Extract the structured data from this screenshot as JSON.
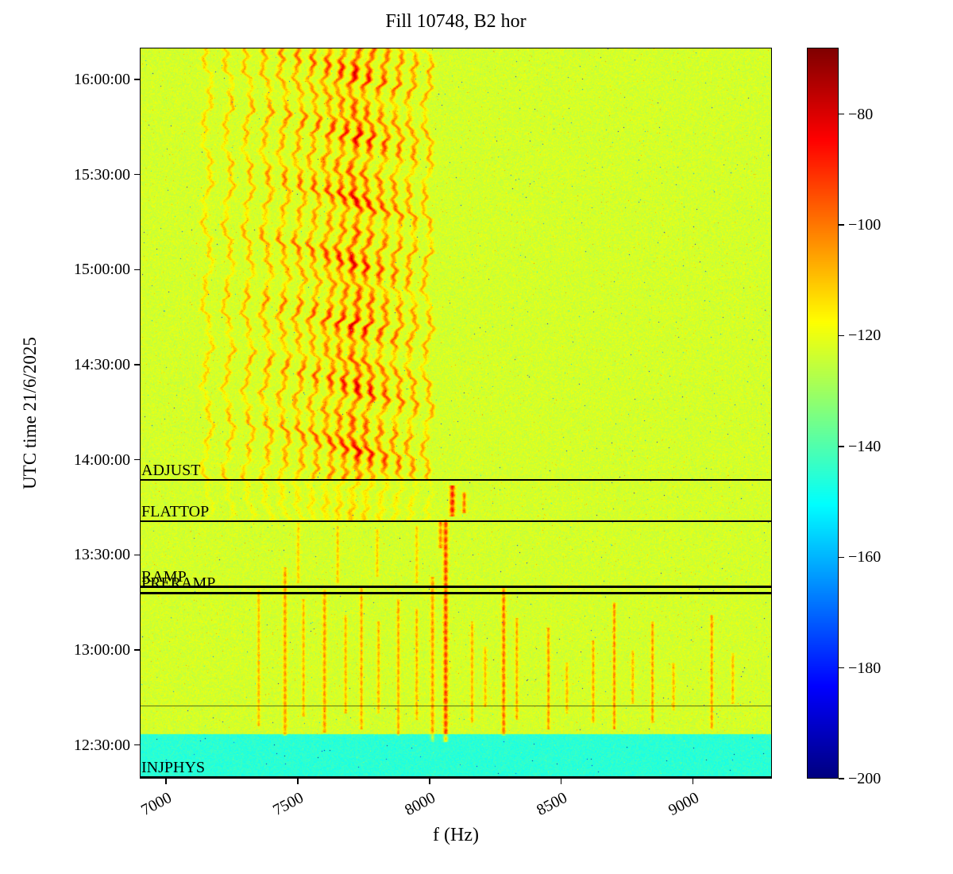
{
  "chart_data": {
    "type": "heatmap",
    "subtype": "spectrogram",
    "title": "Fill 10748, B2 hor",
    "xlabel": "f (Hz)",
    "ylabel": "UTC time 21/6/2025",
    "date": "21/6/2025",
    "x_range": [
      6900,
      9300
    ],
    "x_ticks": [
      7000,
      7500,
      8000,
      8500,
      9000
    ],
    "y_ticks": [
      "16:00:00",
      "15:30:00",
      "15:00:00",
      "14:30:00",
      "14:00:00",
      "13:30:00",
      "13:00:00",
      "12:30:00"
    ],
    "y_range_minutes": [
      739.4,
      970
    ],
    "colorbar": {
      "colormap": "jet",
      "vmin": -200,
      "vmax": -68,
      "ticks": [
        -80,
        -100,
        -120,
        -140,
        -160,
        -180,
        -200
      ],
      "tick_labels": [
        "−80",
        "−100",
        "−120",
        "−140",
        "−160",
        "−180",
        "−200"
      ]
    },
    "annotations": [
      {
        "label": "ADJUST",
        "time": "13:54",
        "minutes": 833.6
      },
      {
        "label": "FLATTOP",
        "time": "13:41",
        "minutes": 820.6
      },
      {
        "label": "RAMP",
        "time": "13:20",
        "minutes": 800.0
      },
      {
        "label": "PRERAMP",
        "time": "13:18",
        "minutes": 798.0
      },
      {
        "label": "INJPHYS",
        "time": "12:20",
        "minutes": 739.9
      }
    ],
    "thin_line_minutes": 762.5,
    "background_level_db": -123,
    "injection_region": {
      "end_minutes": 753.5,
      "level_db": -145
    },
    "comb_active_from_minutes": 833.6,
    "comb_faint_from_minutes": 820.6,
    "comb_lines": [
      {
        "f": 7155,
        "level": -110,
        "sigma": 6
      },
      {
        "f": 7235,
        "level": -107,
        "sigma": 6
      },
      {
        "f": 7310,
        "level": -105,
        "sigma": 6
      },
      {
        "f": 7380,
        "level": -103,
        "sigma": 7
      },
      {
        "f": 7445,
        "level": -101,
        "sigma": 7
      },
      {
        "f": 7505,
        "level": -99,
        "sigma": 7
      },
      {
        "f": 7560,
        "level": -97,
        "sigma": 7
      },
      {
        "f": 7615,
        "level": -94,
        "sigma": 8
      },
      {
        "f": 7665,
        "level": -90,
        "sigma": 8
      },
      {
        "f": 7715,
        "level": -84,
        "sigma": 9
      },
      {
        "f": 7765,
        "level": -88,
        "sigma": 8
      },
      {
        "f": 7820,
        "level": -94,
        "sigma": 8
      },
      {
        "f": 7875,
        "level": -97,
        "sigma": 7
      },
      {
        "f": 7930,
        "level": -101,
        "sigma": 7
      },
      {
        "f": 7990,
        "level": -104,
        "sigma": 6
      }
    ],
    "streaks": [
      {
        "f": 8060,
        "t0": 751,
        "t1": 821,
        "level": -93,
        "w": 6
      },
      {
        "f": 8085,
        "t0": 822,
        "t1": 832,
        "level": -89,
        "w": 7
      },
      {
        "f": 8130,
        "t0": 823,
        "t1": 830,
        "level": -98,
        "w": 5
      },
      {
        "f": 8040,
        "t0": 812,
        "t1": 821,
        "level": -102,
        "w": 5
      },
      {
        "f": 8280,
        "t0": 753,
        "t1": 800,
        "level": -98,
        "w": 5
      },
      {
        "f": 8330,
        "t0": 758,
        "t1": 790,
        "level": -105,
        "w": 4
      },
      {
        "f": 8450,
        "t0": 755,
        "t1": 787,
        "level": -103,
        "w": 4
      },
      {
        "f": 8520,
        "t0": 760,
        "t1": 776,
        "level": -107,
        "w": 4
      },
      {
        "f": 8620,
        "t0": 757,
        "t1": 783,
        "level": -105,
        "w": 4
      },
      {
        "f": 8700,
        "t0": 755,
        "t1": 795,
        "level": -101,
        "w": 4
      },
      {
        "f": 8770,
        "t0": 763,
        "t1": 780,
        "level": -107,
        "w": 4
      },
      {
        "f": 8845,
        "t0": 757,
        "t1": 789,
        "level": -103,
        "w": 4
      },
      {
        "f": 8925,
        "t0": 761,
        "t1": 776,
        "level": -108,
        "w": 4
      },
      {
        "f": 9070,
        "t0": 755,
        "t1": 791,
        "level": -103,
        "w": 4
      },
      {
        "f": 9150,
        "t0": 763,
        "t1": 779,
        "level": -108,
        "w": 4
      },
      {
        "f": 7350,
        "t0": 756,
        "t1": 799,
        "level": -107,
        "w": 4
      },
      {
        "f": 7450,
        "t0": 753,
        "t1": 806,
        "level": -104,
        "w": 5
      },
      {
        "f": 7520,
        "t0": 759,
        "t1": 796,
        "level": -107,
        "w": 4
      },
      {
        "f": 7600,
        "t0": 754,
        "t1": 799,
        "level": -104,
        "w": 5
      },
      {
        "f": 7680,
        "t0": 760,
        "t1": 791,
        "level": -107,
        "w": 4
      },
      {
        "f": 7740,
        "t0": 755,
        "t1": 800,
        "level": -105,
        "w": 4
      },
      {
        "f": 7805,
        "t0": 760,
        "t1": 789,
        "level": -107,
        "w": 4
      },
      {
        "f": 7880,
        "t0": 753,
        "t1": 796,
        "level": -105,
        "w": 4
      },
      {
        "f": 7950,
        "t0": 758,
        "t1": 793,
        "level": -106,
        "w": 4
      },
      {
        "f": 8010,
        "t0": 751,
        "t1": 803,
        "level": -104,
        "w": 5
      },
      {
        "f": 8160,
        "t0": 757,
        "t1": 789,
        "level": -106,
        "w": 4
      },
      {
        "f": 8210,
        "t0": 762,
        "t1": 781,
        "level": -108,
        "w": 4
      },
      {
        "f": 7500,
        "t0": 801,
        "t1": 820,
        "level": -110,
        "w": 4
      },
      {
        "f": 7650,
        "t0": 801,
        "t1": 819,
        "level": -109,
        "w": 4
      },
      {
        "f": 7800,
        "t0": 803,
        "t1": 818,
        "level": -110,
        "w": 4
      },
      {
        "f": 7950,
        "t0": 801,
        "t1": 819,
        "level": -110,
        "w": 4
      }
    ]
  }
}
